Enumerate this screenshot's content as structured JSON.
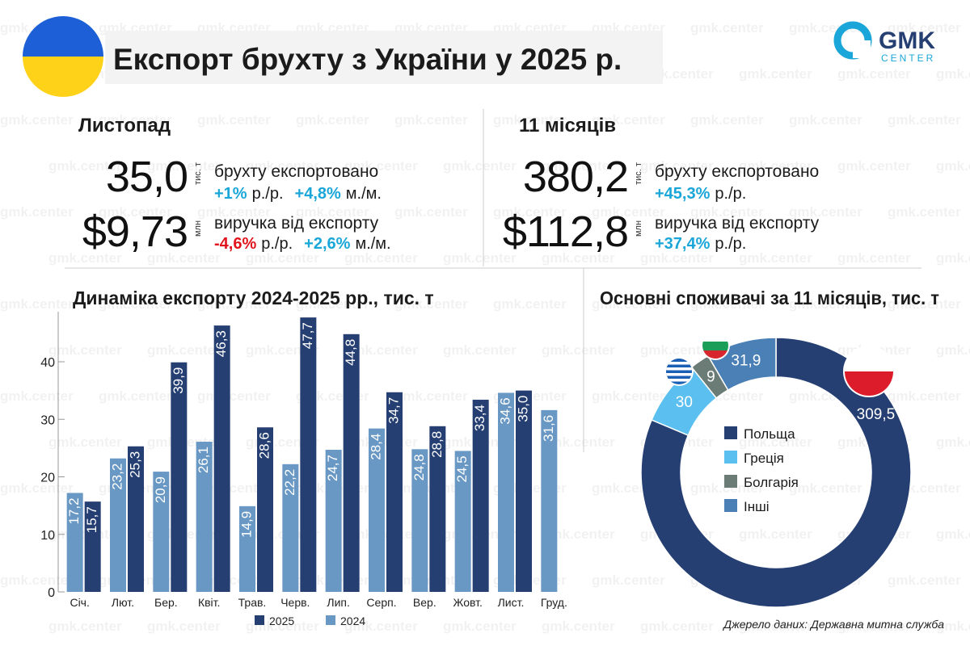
{
  "header": {
    "title": "Експорт брухту з України у 2025 р.",
    "logo_top": "GMK",
    "logo_bottom": "CENTER"
  },
  "watermark": "gmk.center",
  "panels": [
    {
      "heading": "Листопад",
      "rows": [
        {
          "value": "35,0",
          "unit": "тис. т",
          "label": "брухту експортовано",
          "changes": [
            {
              "value": "+1%",
              "period": "р./р.",
              "color": "#1aa6d8"
            },
            {
              "value": "+4,8%",
              "period": "м./м.",
              "color": "#1aa6d8"
            }
          ]
        },
        {
          "value": "$9,73",
          "unit": "млн",
          "label": "виручка від експорту",
          "changes": [
            {
              "value": "-4,6%",
              "period": "р./р.",
              "color": "#e0141d"
            },
            {
              "value": "+2,6%",
              "period": "м./м.",
              "color": "#1aa6d8"
            }
          ]
        }
      ]
    },
    {
      "heading": "11 місяців",
      "rows": [
        {
          "value": "380,2",
          "unit": "тис. т",
          "label": "брухту експортовано",
          "changes": [
            {
              "value": "+45,3%",
              "period": "р./р.",
              "color": "#1aa6d8"
            }
          ]
        },
        {
          "value": "$112,8",
          "unit": "млн",
          "label": "виручка від експорту",
          "changes": [
            {
              "value": "+37,4%",
              "period": "р./р.",
              "color": "#1aa6d8"
            }
          ]
        }
      ]
    }
  ],
  "chart_data": [
    {
      "type": "bar",
      "title": "Динаміка експорту 2024-2025 рр., тис. т",
      "categories": [
        "Січ.",
        "Лют.",
        "Бер.",
        "Квіт.",
        "Трав.",
        "Черв.",
        "Лип.",
        "Серп.",
        "Вер.",
        "Жовт.",
        "Лист.",
        "Груд."
      ],
      "series": [
        {
          "name": "2024",
          "color": "#6a98c4",
          "values": [
            17.2,
            23.2,
            20.9,
            26.1,
            14.9,
            22.2,
            24.7,
            28.4,
            24.8,
            24.5,
            34.6,
            31.6
          ],
          "value_labels": [
            "17,2",
            "23,2",
            "20,9",
            "26,1",
            "14,9",
            "22,2",
            "24,7",
            "28,4",
            "24,8",
            "24,5",
            "34,6",
            "31,6"
          ]
        },
        {
          "name": "2025",
          "color": "#263f73",
          "values": [
            15.7,
            25.3,
            39.9,
            46.3,
            28.6,
            47.7,
            44.8,
            34.7,
            28.8,
            33.4,
            35.0,
            null
          ],
          "value_labels": [
            "15,7",
            "25,3",
            "39,9",
            "46,3",
            "28,6",
            "47,7",
            "44,8",
            "34,7",
            "28,8",
            "33,4",
            "35,0",
            null
          ]
        }
      ],
      "legend_order": [
        1,
        0
      ],
      "ylim": [
        0,
        48
      ],
      "yticks": [
        0,
        10,
        20,
        30,
        40
      ]
    },
    {
      "type": "donut",
      "title": "Основні споживачі за 11 місяців, тис. т",
      "categories": [
        "Польща",
        "Греція",
        "Болгарія",
        "Інші"
      ],
      "values": [
        309.5,
        30,
        9,
        31.9
      ],
      "value_labels": [
        "309,5",
        "30",
        "9",
        "31,9"
      ],
      "colors": [
        "#263f73",
        "#5bc0f0",
        "#6b7b76",
        "#4a80b5"
      ]
    }
  ],
  "source": "Джерело даних: Державна митна служба"
}
